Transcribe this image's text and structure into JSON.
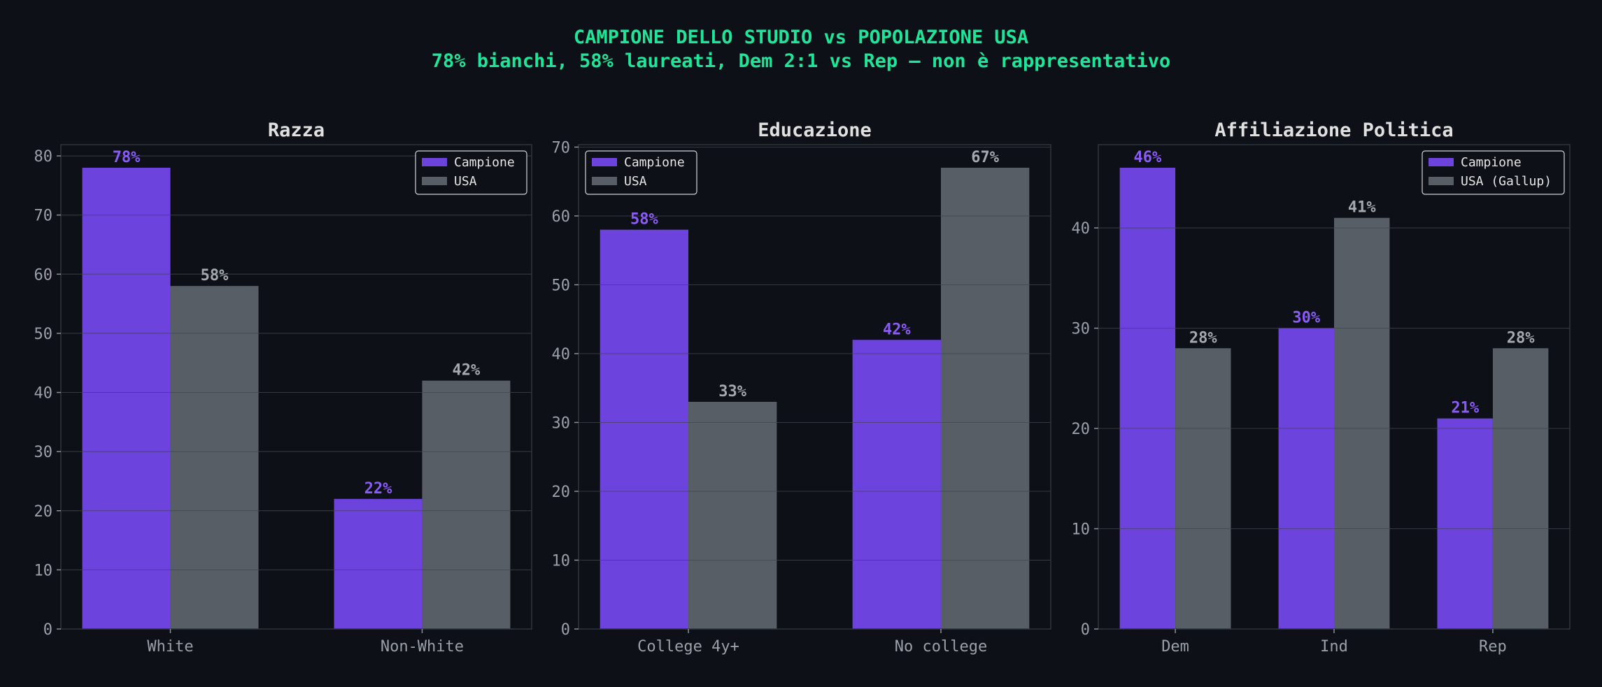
{
  "title_line1": "CAMPIONE DELLO STUDIO vs POPOLAZIONE USA",
  "title_line2": "78% bianchi, 58% laureati, Dem 2:1 vs Rep — non è rappresentativo",
  "colors": {
    "background": "#0d1117",
    "title": "#1ee59a",
    "campione": "#6c43dc",
    "usa": "#575e66",
    "campione_label": "#8a5cf5",
    "usa_label": "#a4a9b0"
  },
  "chart_data": [
    {
      "type": "bar",
      "title": "Razza",
      "categories": [
        "White",
        "Non-White"
      ],
      "series": [
        {
          "name": "Campione",
          "values": [
            78,
            22
          ]
        },
        {
          "name": "USA",
          "values": [
            58,
            42
          ]
        }
      ],
      "value_labels": [
        [
          "78%",
          "22%"
        ],
        [
          "58%",
          "42%"
        ]
      ],
      "ylim": [
        0,
        81.9
      ],
      "yticks": [
        0,
        10,
        20,
        30,
        40,
        50,
        60,
        70,
        80
      ],
      "grid": true,
      "legend": "upper right"
    },
    {
      "type": "bar",
      "title": "Educazione",
      "categories": [
        "College 4y+",
        "No college"
      ],
      "series": [
        {
          "name": "Campione",
          "values": [
            58,
            42
          ]
        },
        {
          "name": "USA",
          "values": [
            33,
            67
          ]
        }
      ],
      "value_labels": [
        [
          "58%",
          "42%"
        ],
        [
          "33%",
          "67%"
        ]
      ],
      "ylim": [
        0,
        70.35
      ],
      "yticks": [
        0,
        10,
        20,
        30,
        40,
        50,
        60,
        70
      ],
      "grid": true,
      "legend": "upper left"
    },
    {
      "type": "bar",
      "title": "Affiliazione Politica",
      "categories": [
        "Dem",
        "Ind",
        "Rep"
      ],
      "series": [
        {
          "name": "Campione",
          "values": [
            46,
            30,
            21
          ]
        },
        {
          "name": "USA (Gallup)",
          "values": [
            28,
            41,
            28
          ]
        }
      ],
      "value_labels": [
        [
          "46%",
          "30%",
          "21%"
        ],
        [
          "28%",
          "41%",
          "28%"
        ]
      ],
      "ylim": [
        0,
        48.3
      ],
      "yticks": [
        0,
        10,
        20,
        30,
        40
      ],
      "grid": true,
      "legend": "upper right"
    }
  ]
}
